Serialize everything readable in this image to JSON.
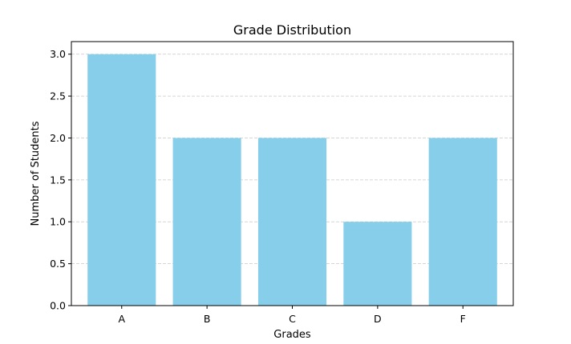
{
  "chart_data": {
    "type": "bar",
    "title": "Grade Distribution",
    "xlabel": "Grades",
    "ylabel": "Number of Students",
    "categories": [
      "A",
      "B",
      "C",
      "D",
      "F"
    ],
    "values": [
      3,
      2,
      2,
      1,
      2
    ],
    "ylim": [
      0,
      3.15
    ],
    "yticks": [
      "0.0",
      "0.5",
      "1.0",
      "1.5",
      "2.0",
      "2.5",
      "3.0"
    ],
    "grid": "y-dashed",
    "bar_color": "#87CEEB"
  }
}
